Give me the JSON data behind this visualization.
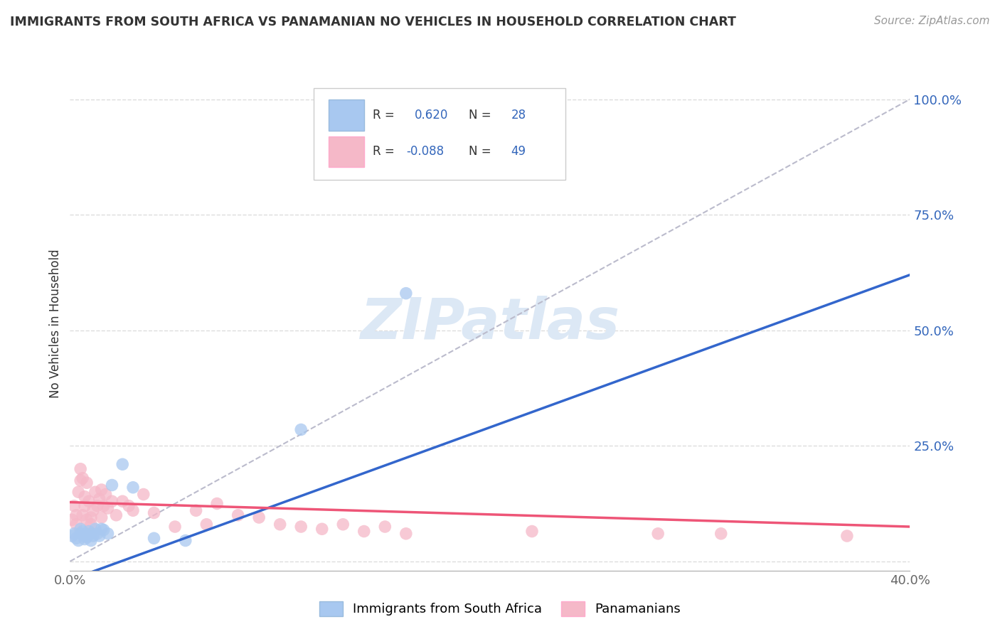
{
  "title": "IMMIGRANTS FROM SOUTH AFRICA VS PANAMANIAN NO VEHICLES IN HOUSEHOLD CORRELATION CHART",
  "source": "Source: ZipAtlas.com",
  "ylabel": "No Vehicles in Household",
  "xlim": [
    0.0,
    0.4
  ],
  "ylim": [
    -0.02,
    1.05
  ],
  "blue_R": 0.62,
  "blue_N": 28,
  "pink_R": -0.088,
  "pink_N": 49,
  "blue_color": "#a8c8f0",
  "pink_color": "#f5b8c8",
  "blue_line_color": "#3366cc",
  "pink_line_color": "#ee5577",
  "dashed_line_color": "#bbbbcc",
  "watermark": "ZIPatlas",
  "watermark_color": "#dce8f5",
  "legend_R_color": "#3366bb",
  "blue_scatter_x": [
    0.001,
    0.002,
    0.003,
    0.004,
    0.005,
    0.005,
    0.006,
    0.007,
    0.007,
    0.008,
    0.008,
    0.009,
    0.01,
    0.01,
    0.011,
    0.012,
    0.013,
    0.014,
    0.015,
    0.016,
    0.018,
    0.02,
    0.025,
    0.03,
    0.04,
    0.055,
    0.11,
    0.16
  ],
  "blue_scatter_y": [
    0.055,
    0.06,
    0.05,
    0.045,
    0.06,
    0.07,
    0.065,
    0.055,
    0.048,
    0.058,
    0.052,
    0.065,
    0.06,
    0.045,
    0.055,
    0.07,
    0.06,
    0.055,
    0.07,
    0.068,
    0.06,
    0.165,
    0.21,
    0.16,
    0.05,
    0.045,
    0.285,
    0.58
  ],
  "pink_scatter_x": [
    0.001,
    0.002,
    0.003,
    0.003,
    0.004,
    0.005,
    0.005,
    0.006,
    0.006,
    0.007,
    0.007,
    0.008,
    0.008,
    0.009,
    0.01,
    0.01,
    0.011,
    0.012,
    0.013,
    0.014,
    0.015,
    0.015,
    0.016,
    0.017,
    0.018,
    0.02,
    0.022,
    0.025,
    0.028,
    0.03,
    0.035,
    0.04,
    0.05,
    0.06,
    0.065,
    0.07,
    0.08,
    0.09,
    0.1,
    0.11,
    0.12,
    0.13,
    0.14,
    0.15,
    0.16,
    0.22,
    0.28,
    0.31,
    0.37
  ],
  "pink_scatter_y": [
    0.09,
    0.12,
    0.1,
    0.08,
    0.15,
    0.2,
    0.175,
    0.1,
    0.18,
    0.12,
    0.14,
    0.09,
    0.17,
    0.13,
    0.095,
    0.08,
    0.11,
    0.15,
    0.12,
    0.135,
    0.095,
    0.155,
    0.12,
    0.145,
    0.115,
    0.13,
    0.1,
    0.13,
    0.12,
    0.11,
    0.145,
    0.105,
    0.075,
    0.11,
    0.08,
    0.125,
    0.1,
    0.095,
    0.08,
    0.075,
    0.07,
    0.08,
    0.065,
    0.075,
    0.06,
    0.065,
    0.06,
    0.06,
    0.055
  ],
  "blue_line_x0": 0.0,
  "blue_line_y0": -0.04,
  "blue_line_x1": 0.4,
  "blue_line_y1": 0.62,
  "pink_line_x0": 0.0,
  "pink_line_y0": 0.128,
  "pink_line_x1": 0.4,
  "pink_line_y1": 0.075,
  "background_color": "#ffffff",
  "grid_color": "#dddddd"
}
